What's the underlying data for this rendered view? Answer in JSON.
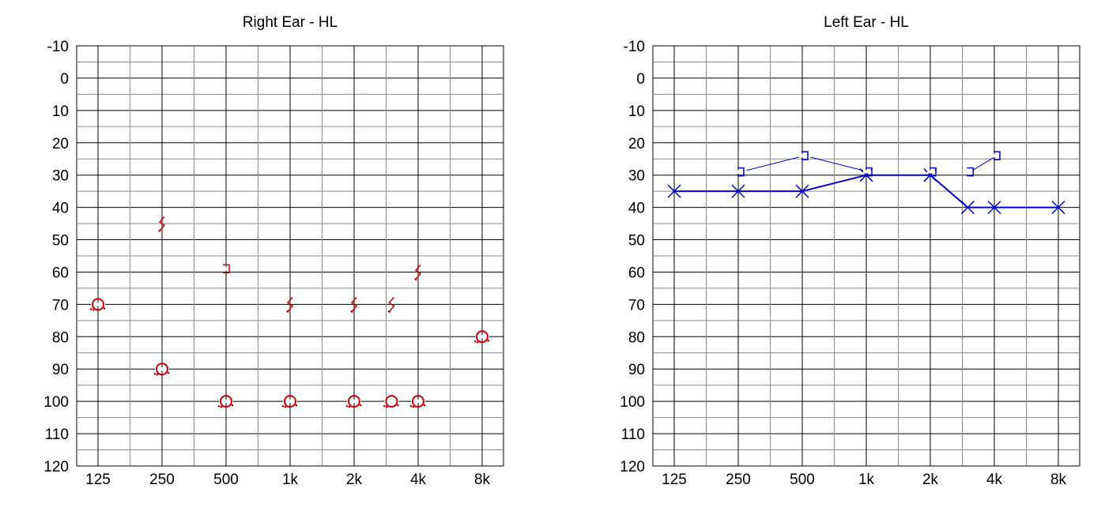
{
  "chart_data": [
    {
      "type": "scatter",
      "title": "Right Ear - HL",
      "categories": [
        "125",
        "250",
        "500",
        "1k",
        "2k",
        "4k",
        "8k"
      ],
      "yticks": [
        "-10",
        "0",
        "10",
        "20",
        "30",
        "40",
        "50",
        "60",
        "70",
        "80",
        "90",
        "100",
        "110",
        "120"
      ],
      "ylim": [
        -10,
        120
      ],
      "y_inverted": true,
      "x_scale": "log2",
      "xlim_hz": [
        125,
        8000
      ],
      "grid": true,
      "color": "#cc0000",
      "series": [
        {
          "symbol": "masked-ac-circle",
          "points": [
            {
              "x": 125,
              "y": 70
            },
            {
              "x": 250,
              "y": 90
            },
            {
              "x": 500,
              "y": 100
            },
            {
              "x": 1000,
              "y": 100
            },
            {
              "x": 2000,
              "y": 100
            },
            {
              "x": 3000,
              "y": 100
            },
            {
              "x": 4000,
              "y": 100
            },
            {
              "x": 8000,
              "y": 80
            }
          ]
        },
        {
          "symbol": "bc-no-response",
          "points": [
            {
              "x": 250,
              "y": 45
            },
            {
              "x": 1000,
              "y": 70
            },
            {
              "x": 2000,
              "y": 70
            },
            {
              "x": 3000,
              "y": 70
            },
            {
              "x": 4000,
              "y": 60
            }
          ]
        },
        {
          "symbol": "masked-bc-bracket",
          "points": [
            {
              "x": 500,
              "y": 59
            }
          ]
        }
      ]
    },
    {
      "type": "line",
      "title": "Left Ear - HL",
      "categories": [
        "125",
        "250",
        "500",
        "1k",
        "2k",
        "4k",
        "8k"
      ],
      "yticks": [
        "-10",
        "0",
        "10",
        "20",
        "30",
        "40",
        "50",
        "60",
        "70",
        "80",
        "90",
        "100",
        "110",
        "120"
      ],
      "ylim": [
        -10,
        120
      ],
      "y_inverted": true,
      "x_scale": "log2",
      "xlim_hz": [
        125,
        8000
      ],
      "grid": true,
      "color": "#0000cc",
      "series": [
        {
          "symbol": "ac-x",
          "connected": true,
          "points": [
            {
              "x": 125,
              "y": 35
            },
            {
              "x": 250,
              "y": 35
            },
            {
              "x": 500,
              "y": 35
            },
            {
              "x": 1000,
              "y": 30
            },
            {
              "x": 2000,
              "y": 30
            },
            {
              "x": 3000,
              "y": 40
            },
            {
              "x": 4000,
              "y": 40
            },
            {
              "x": 8000,
              "y": 40
            }
          ]
        },
        {
          "symbol": "masked-bc-bracket",
          "connected": true,
          "points": [
            {
              "x": 250,
              "y": 29
            },
            {
              "x": 500,
              "y": 24
            },
            {
              "x": 1000,
              "y": 29
            }
          ]
        },
        {
          "symbol": "masked-bc-bracket",
          "connected": false,
          "points": [
            {
              "x": 2000,
              "y": 29
            }
          ]
        },
        {
          "symbol": "masked-bc-bracket",
          "connected": true,
          "points": [
            {
              "x": 3000,
              "y": 29
            },
            {
              "x": 4000,
              "y": 24
            }
          ]
        }
      ]
    }
  ]
}
